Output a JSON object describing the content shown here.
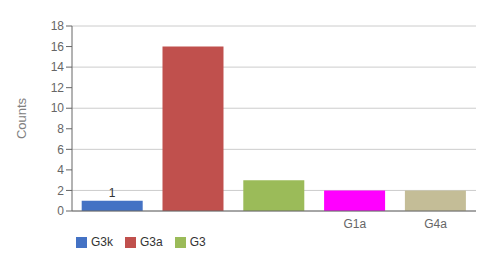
{
  "chart_data": {
    "type": "bar",
    "y_label": "Counts",
    "categories": [
      null,
      null,
      null,
      "G1a",
      "G4a"
    ],
    "series": [
      {
        "name": "G3k",
        "color": "#4472C4",
        "values": [
          1,
          null,
          null,
          null,
          null
        ]
      },
      {
        "name": "G3a",
        "color": "#C0504D",
        "values": [
          null,
          16,
          null,
          null,
          null
        ]
      },
      {
        "name": "G3",
        "color": "#9BBB59",
        "values": [
          null,
          null,
          3,
          null,
          null
        ]
      },
      {
        "color": "#FF00FF",
        "values": [
          null,
          null,
          null,
          2,
          null
        ]
      },
      {
        "color": "#C4BD97",
        "values": [
          null,
          null,
          null,
          null,
          2
        ]
      }
    ],
    "ylim": [
      0,
      18
    ],
    "yticks": [
      0,
      2,
      4,
      6,
      8,
      10,
      12,
      14,
      16,
      18
    ],
    "grid": true,
    "legend": "lower left",
    "data_labels": true
  }
}
